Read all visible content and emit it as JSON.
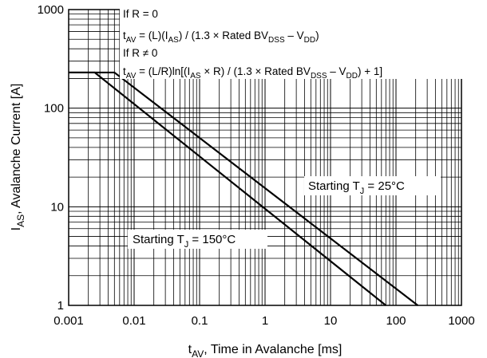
{
  "chart_data": {
    "type": "line",
    "xscale": "log",
    "yscale": "log",
    "xlim": [
      0.001,
      1000
    ],
    "ylim": [
      1,
      1000
    ],
    "grid": true,
    "xlabel_main": "t",
    "xlabel_sub": "AV",
    "xlabel_rest": ", Time in Avalanche [ms]",
    "ylabel_main": "I",
    "ylabel_sub": "AS",
    "ylabel_rest": ", Avalanche Current [A]",
    "x_ticks": [
      "0.001",
      "0.01",
      "0.1",
      "1",
      "10",
      "100",
      "1000"
    ],
    "y_ticks": [
      "1",
      "10",
      "100",
      "1000"
    ],
    "series": [
      {
        "label_main": "Starting T",
        "label_sub": "J",
        "label_rest": " =  25°C",
        "x": [
          0.001,
          0.005,
          215
        ],
        "y": [
          230,
          230,
          1
        ]
      },
      {
        "label_main": "Starting T",
        "label_sub": "J",
        "label_rest": " =  150°C",
        "x": [
          0.001,
          0.0025,
          70
        ],
        "y": [
          230,
          230,
          1
        ]
      }
    ],
    "annotations": {
      "line1": "If R = 0",
      "line2": {
        "p1": "t",
        "s1": "AV",
        "p2": " = (L)(I",
        "s2": "AS",
        "p3": ") / (1.3 × Rated BV",
        "s3": "DSS",
        "p4": " – V",
        "s4": "DD",
        "p5": ")"
      },
      "line3": "If R ≠ 0",
      "line4": {
        "p1": "t",
        "s1": "AV",
        "p2": " = (L/R)ln[(I",
        "s2": "AS",
        "p3": " × R) / (1.3 × Rated BV",
        "s3": "DSS",
        "p4": " – V",
        "s4": "DD",
        "p5": ") + 1]"
      }
    }
  }
}
